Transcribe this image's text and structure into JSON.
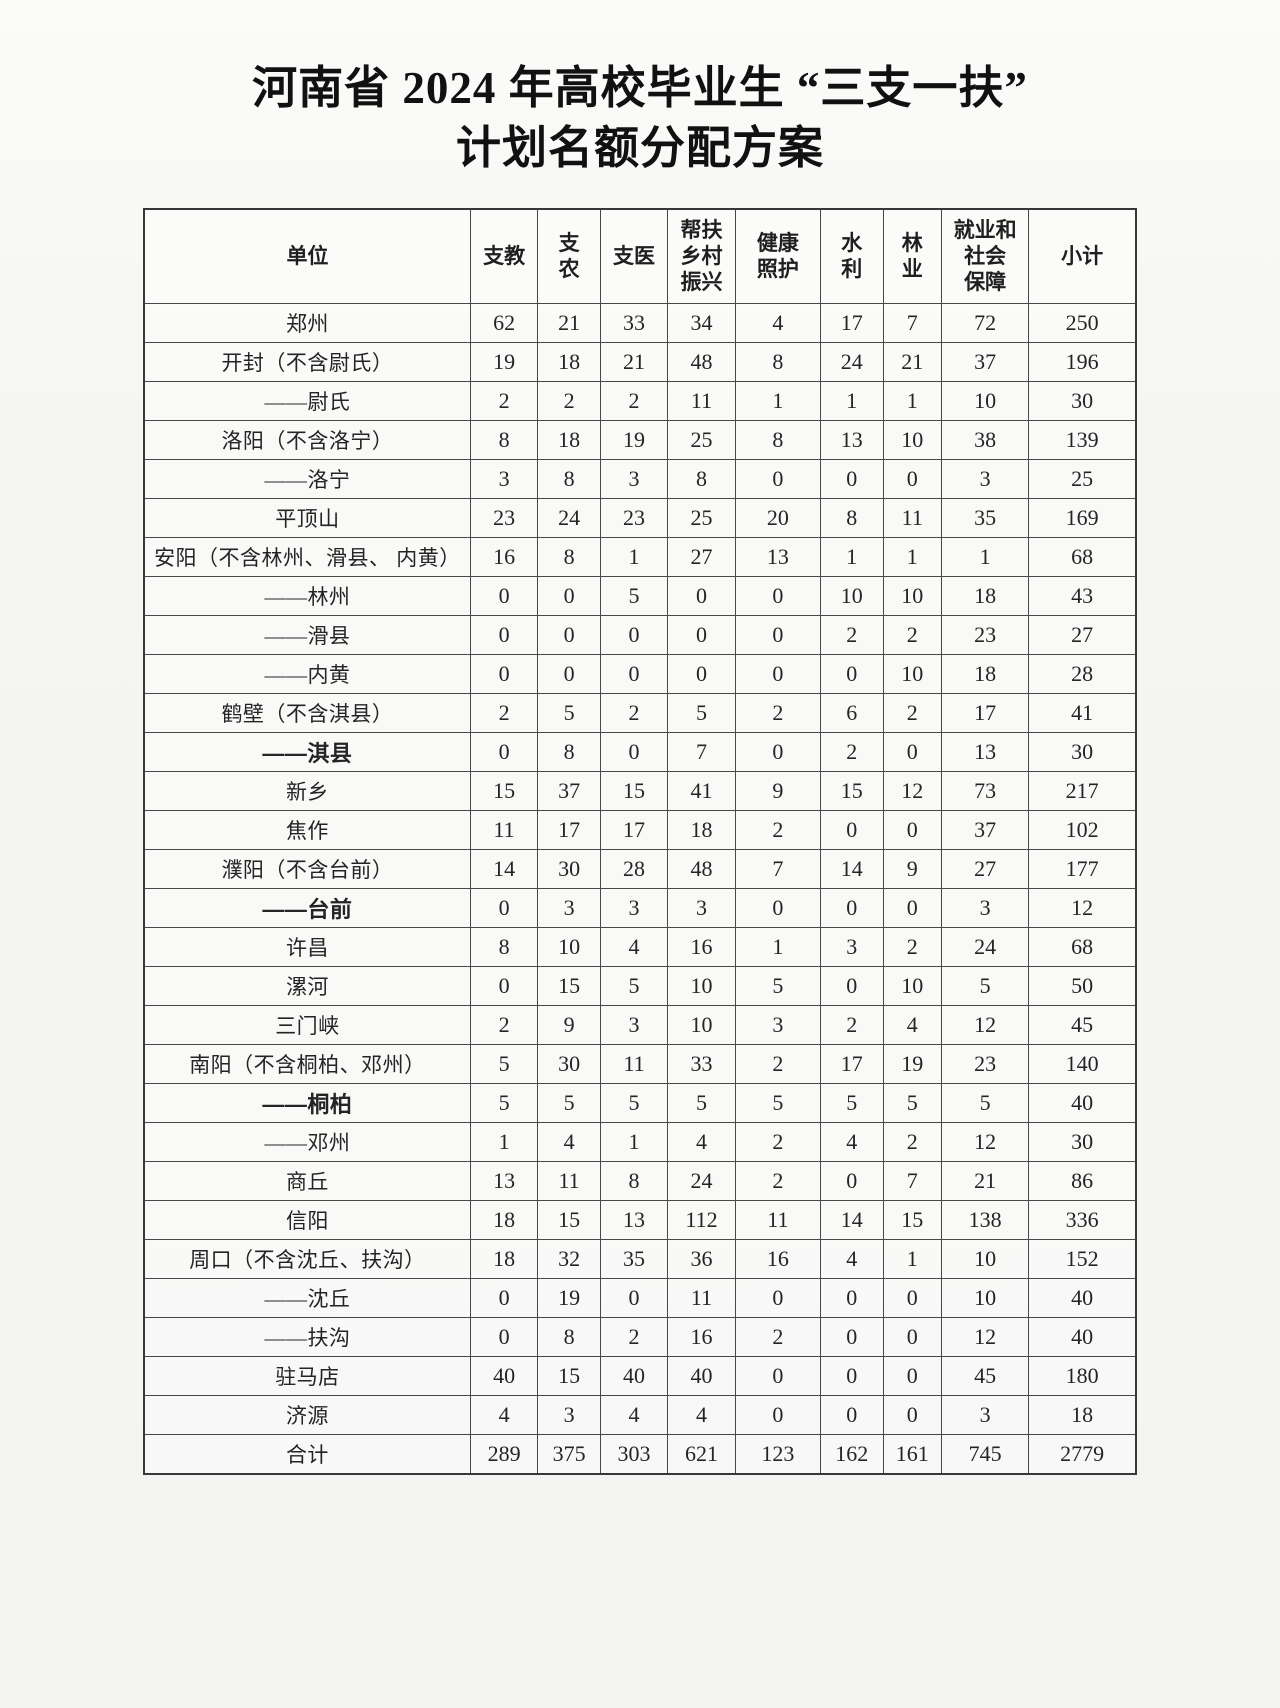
{
  "title": {
    "line1": "河南省 2024 年高校毕业生 “三支一扶”",
    "line2": "计划名额分配方案"
  },
  "table": {
    "columns": [
      "单位",
      "支教",
      "支\n农",
      "支医",
      "帮扶\n乡村\n振兴",
      "健康\n照护",
      "水\n利",
      "林\n业",
      "就业和\n社会\n保障",
      "小计"
    ],
    "rows": [
      {
        "unit": "郑州",
        "bold": false,
        "values": [
          62,
          21,
          33,
          34,
          4,
          17,
          7,
          72,
          250
        ]
      },
      {
        "unit": "开封（不含尉氏）",
        "bold": false,
        "values": [
          19,
          18,
          21,
          48,
          8,
          24,
          21,
          37,
          196
        ]
      },
      {
        "unit": "——尉氏",
        "bold": false,
        "values": [
          2,
          2,
          2,
          11,
          1,
          1,
          1,
          10,
          30
        ]
      },
      {
        "unit": "洛阳（不含洛宁）",
        "bold": false,
        "values": [
          8,
          18,
          19,
          25,
          8,
          13,
          10,
          38,
          139
        ]
      },
      {
        "unit": "——洛宁",
        "bold": false,
        "values": [
          3,
          8,
          3,
          8,
          0,
          0,
          0,
          3,
          25
        ]
      },
      {
        "unit": "平顶山",
        "bold": false,
        "values": [
          23,
          24,
          23,
          25,
          20,
          8,
          11,
          35,
          169
        ]
      },
      {
        "unit": "安阳（不含林州、滑县、 内黄）",
        "bold": false,
        "values": [
          16,
          8,
          1,
          27,
          13,
          1,
          1,
          1,
          68
        ]
      },
      {
        "unit": "——林州",
        "bold": false,
        "values": [
          0,
          0,
          5,
          0,
          0,
          10,
          10,
          18,
          43
        ]
      },
      {
        "unit": "——滑县",
        "bold": false,
        "values": [
          0,
          0,
          0,
          0,
          0,
          2,
          2,
          23,
          27
        ]
      },
      {
        "unit": "——内黄",
        "bold": false,
        "values": [
          0,
          0,
          0,
          0,
          0,
          0,
          10,
          18,
          28
        ]
      },
      {
        "unit": "鹤壁（不含淇县）",
        "bold": false,
        "values": [
          2,
          5,
          2,
          5,
          2,
          6,
          2,
          17,
          41
        ]
      },
      {
        "unit": "——淇县",
        "bold": true,
        "values": [
          0,
          8,
          0,
          7,
          0,
          2,
          0,
          13,
          30
        ]
      },
      {
        "unit": "新乡",
        "bold": false,
        "values": [
          15,
          37,
          15,
          41,
          9,
          15,
          12,
          73,
          217
        ]
      },
      {
        "unit": "焦作",
        "bold": false,
        "values": [
          11,
          17,
          17,
          18,
          2,
          0,
          0,
          37,
          102
        ]
      },
      {
        "unit": "濮阳（不含台前）",
        "bold": false,
        "values": [
          14,
          30,
          28,
          48,
          7,
          14,
          9,
          27,
          177
        ]
      },
      {
        "unit": "——台前",
        "bold": true,
        "values": [
          0,
          3,
          3,
          3,
          0,
          0,
          0,
          3,
          12
        ]
      },
      {
        "unit": "许昌",
        "bold": false,
        "values": [
          8,
          10,
          4,
          16,
          1,
          3,
          2,
          24,
          68
        ]
      },
      {
        "unit": "漯河",
        "bold": false,
        "values": [
          0,
          15,
          5,
          10,
          5,
          0,
          10,
          5,
          50
        ]
      },
      {
        "unit": "三门峡",
        "bold": false,
        "values": [
          2,
          9,
          3,
          10,
          3,
          2,
          4,
          12,
          45
        ]
      },
      {
        "unit": "南阳（不含桐柏、邓州）",
        "bold": false,
        "values": [
          5,
          30,
          11,
          33,
          2,
          17,
          19,
          23,
          140
        ]
      },
      {
        "unit": "——桐柏",
        "bold": true,
        "values": [
          5,
          5,
          5,
          5,
          5,
          5,
          5,
          5,
          40
        ]
      },
      {
        "unit": "——邓州",
        "bold": false,
        "values": [
          1,
          4,
          1,
          4,
          2,
          4,
          2,
          12,
          30
        ]
      },
      {
        "unit": "商丘",
        "bold": false,
        "values": [
          13,
          11,
          8,
          24,
          2,
          0,
          7,
          21,
          86
        ]
      },
      {
        "unit": "信阳",
        "bold": false,
        "values": [
          18,
          15,
          13,
          112,
          11,
          14,
          15,
          138,
          336
        ]
      },
      {
        "unit": "周口（不含沈丘、扶沟）",
        "bold": false,
        "values": [
          18,
          32,
          35,
          36,
          16,
          4,
          1,
          10,
          152
        ]
      },
      {
        "unit": "——沈丘",
        "bold": false,
        "values": [
          0,
          19,
          0,
          11,
          0,
          0,
          0,
          10,
          40
        ]
      },
      {
        "unit": "——扶沟",
        "bold": false,
        "values": [
          0,
          8,
          2,
          16,
          2,
          0,
          0,
          12,
          40
        ]
      },
      {
        "unit": "驻马店",
        "bold": false,
        "values": [
          40,
          15,
          40,
          40,
          0,
          0,
          0,
          45,
          180
        ]
      },
      {
        "unit": "济源",
        "bold": false,
        "values": [
          4,
          3,
          4,
          4,
          0,
          0,
          0,
          3,
          18
        ]
      },
      {
        "unit": "合计",
        "bold": false,
        "values": [
          289,
          375,
          303,
          621,
          123,
          162,
          161,
          745,
          2779
        ]
      }
    ]
  },
  "colors": {
    "paper": "#f5f5f3",
    "border": "#474747",
    "text": "#242424"
  }
}
